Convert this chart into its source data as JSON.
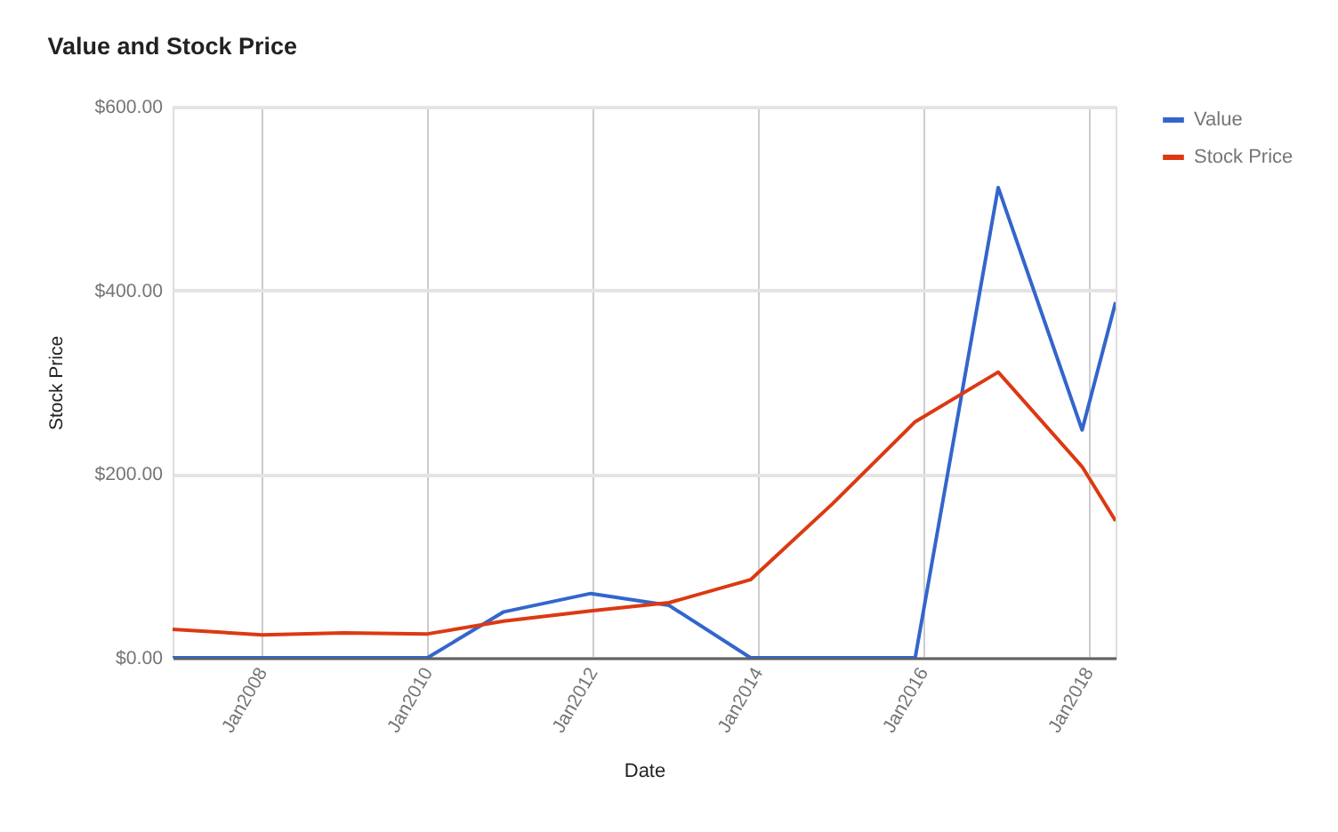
{
  "chart_data": {
    "type": "line",
    "title": "Value and Stock Price",
    "xlabel": "Date",
    "ylabel": "Stock Price",
    "x": [
      "2006-12-01",
      "2008-01-01",
      "2008-12-26",
      "2010-01-01",
      "2010-12-04",
      "2011-12-24",
      "2012-12-04",
      "2013-11-29",
      "2014-11-28",
      "2015-11-27",
      "2016-11-28",
      "2017-12-04",
      "2018-05-01"
    ],
    "series": [
      {
        "name": "Value",
        "color": "#3366cc",
        "values": [
          0,
          0,
          0,
          0,
          50,
          70,
          57,
          0,
          0,
          0,
          512,
          248,
          387
        ]
      },
      {
        "name": "Stock Price",
        "color": "#dc3912",
        "values": [
          31,
          25,
          27,
          26,
          40,
          51,
          60,
          85,
          168,
          257,
          311,
          208,
          149
        ]
      }
    ],
    "xlim": [
      "2006-12-01",
      "2018-05-01"
    ],
    "xticks": [
      {
        "value": "2008-01-01",
        "label": "Jan2008"
      },
      {
        "value": "2010-01-01",
        "label": "Jan2010"
      },
      {
        "value": "2012-01-01",
        "label": "Jan2012"
      },
      {
        "value": "2014-01-01",
        "label": "Jan2014"
      },
      {
        "value": "2016-01-01",
        "label": "Jan2016"
      },
      {
        "value": "2018-01-01",
        "label": "Jan2018"
      }
    ],
    "ylim": [
      0,
      600
    ],
    "yticks": [
      {
        "value": 0,
        "label": "$0.00"
      },
      {
        "value": 200,
        "label": "$200.00"
      },
      {
        "value": 400,
        "label": "$400.00"
      },
      {
        "value": 600,
        "label": "$600.00"
      }
    ],
    "grid": true,
    "legend": "top right"
  }
}
